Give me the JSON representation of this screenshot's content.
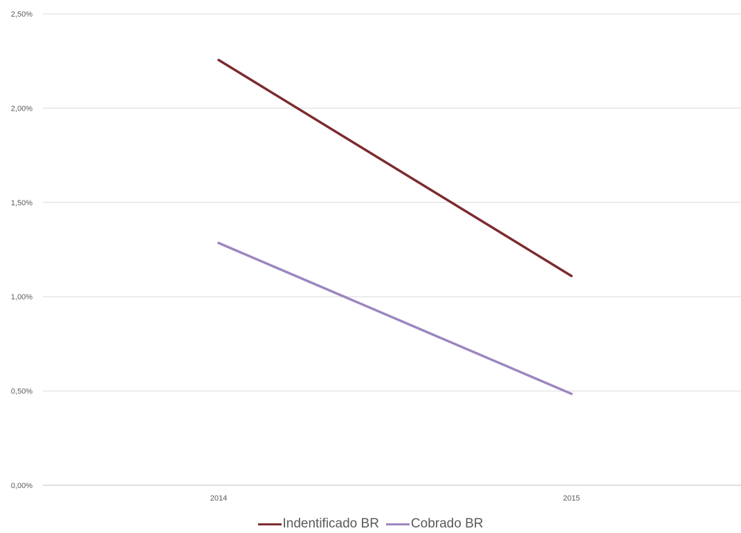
{
  "chart_data": {
    "type": "line",
    "title": "",
    "xlabel": "",
    "ylabel": "",
    "categories": [
      "2014",
      "2015"
    ],
    "ylim": [
      0,
      0.025
    ],
    "yticks": [
      0,
      0.005,
      0.01,
      0.015,
      0.02,
      0.025
    ],
    "ytick_labels": [
      "0,00%",
      "0,50%",
      "1,00%",
      "1,50%",
      "2,00%",
      "2,50%"
    ],
    "grid": true,
    "legend_position": "bottom",
    "series": [
      {
        "name": "Indentificado BR",
        "values": [
          0.02255,
          0.0111
        ],
        "color": "#7b2a2e"
      },
      {
        "name": "Cobrado BR",
        "values": [
          0.01285,
          0.00485
        ],
        "color": "#9b86c0"
      }
    ]
  },
  "colors": {
    "gridline": "#d9d9d9",
    "axis": "#bfbfbf",
    "text": "#595959"
  }
}
